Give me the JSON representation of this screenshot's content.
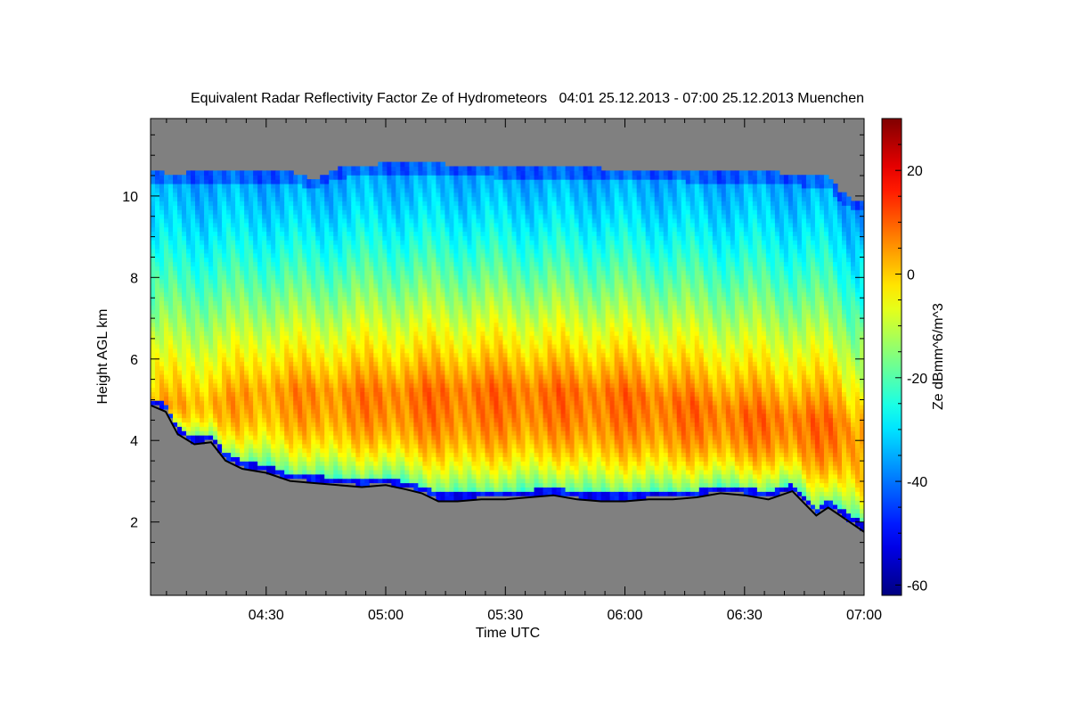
{
  "chart_data": {
    "type": "heatmap",
    "title": "Equivalent Radar Reflectivity Factor Ze of Hydrometeors   04:01 25.12.2013 - 07:00 25.12.2013 Muenchen",
    "xlabel": "Time UTC",
    "ylabel": "Height AGL km",
    "colorbar_label": "Ze dBmm^6/m^3",
    "xlim": [
      4.0167,
      7.0
    ],
    "ylim": [
      0.2,
      11.9
    ],
    "x_ticks": [
      {
        "value": 4.5,
        "label": "04:30"
      },
      {
        "value": 5.0,
        "label": "05:00"
      },
      {
        "value": 5.5,
        "label": "05:30"
      },
      {
        "value": 6.0,
        "label": "06:00"
      },
      {
        "value": 6.5,
        "label": "06:30"
      },
      {
        "value": 7.0,
        "label": "07:00"
      }
    ],
    "y_ticks": [
      {
        "value": 2,
        "label": "2"
      },
      {
        "value": 4,
        "label": "4"
      },
      {
        "value": 6,
        "label": "6"
      },
      {
        "value": 8,
        "label": "8"
      },
      {
        "value": 10,
        "label": "10"
      }
    ],
    "colorbar_range": [
      -62,
      30
    ],
    "colorbar_ticks": [
      {
        "value": 20,
        "label": "20"
      },
      {
        "value": 0,
        "label": "0"
      },
      {
        "value": -20,
        "label": "-20"
      },
      {
        "value": -40,
        "label": "-40"
      },
      {
        "value": -60,
        "label": "-60"
      }
    ],
    "colormap": "jet",
    "background_color": "#808080",
    "cloud_top_km": [
      [
        4.02,
        10.6
      ],
      [
        4.1,
        10.55
      ],
      [
        4.25,
        10.6
      ],
      [
        4.4,
        10.6
      ],
      [
        4.6,
        10.6
      ],
      [
        4.7,
        10.4
      ],
      [
        4.8,
        10.7
      ],
      [
        5.0,
        10.8
      ],
      [
        5.2,
        10.8
      ],
      [
        5.5,
        10.7
      ],
      [
        5.8,
        10.7
      ],
      [
        6.0,
        10.65
      ],
      [
        6.3,
        10.6
      ],
      [
        6.6,
        10.6
      ],
      [
        6.75,
        10.5
      ],
      [
        6.85,
        10.5
      ],
      [
        6.9,
        10.1
      ],
      [
        6.96,
        9.9
      ],
      [
        7.0,
        9.9
      ]
    ],
    "cloud_base_km": [
      [
        4.02,
        4.9
      ],
      [
        4.08,
        4.75
      ],
      [
        4.13,
        4.2
      ],
      [
        4.2,
        3.95
      ],
      [
        4.27,
        4.0
      ],
      [
        4.33,
        3.55
      ],
      [
        4.4,
        3.35
      ],
      [
        4.5,
        3.25
      ],
      [
        4.6,
        3.05
      ],
      [
        4.7,
        3.0
      ],
      [
        4.8,
        2.95
      ],
      [
        4.9,
        2.9
      ],
      [
        5.0,
        2.95
      ],
      [
        5.08,
        2.85
      ],
      [
        5.15,
        2.75
      ],
      [
        5.22,
        2.55
      ],
      [
        5.3,
        2.55
      ],
      [
        5.4,
        2.6
      ],
      [
        5.5,
        2.6
      ],
      [
        5.6,
        2.65
      ],
      [
        5.7,
        2.7
      ],
      [
        5.8,
        2.6
      ],
      [
        5.9,
        2.55
      ],
      [
        6.0,
        2.55
      ],
      [
        6.1,
        2.6
      ],
      [
        6.2,
        2.6
      ],
      [
        6.3,
        2.65
      ],
      [
        6.4,
        2.75
      ],
      [
        6.5,
        2.7
      ],
      [
        6.6,
        2.6
      ],
      [
        6.7,
        2.8
      ],
      [
        6.75,
        2.5
      ],
      [
        6.8,
        2.2
      ],
      [
        6.85,
        2.4
      ],
      [
        6.9,
        2.2
      ],
      [
        6.95,
        2.0
      ],
      [
        7.0,
        1.8
      ]
    ],
    "max_band_km": [
      [
        4.02,
        4.9
      ],
      [
        4.3,
        5.0
      ],
      [
        4.5,
        5.3
      ],
      [
        5.0,
        5.2
      ],
      [
        5.5,
        5.3
      ],
      [
        6.0,
        5.2
      ],
      [
        6.5,
        4.7
      ],
      [
        6.9,
        4.5
      ],
      [
        7.0,
        4.0
      ]
    ]
  }
}
